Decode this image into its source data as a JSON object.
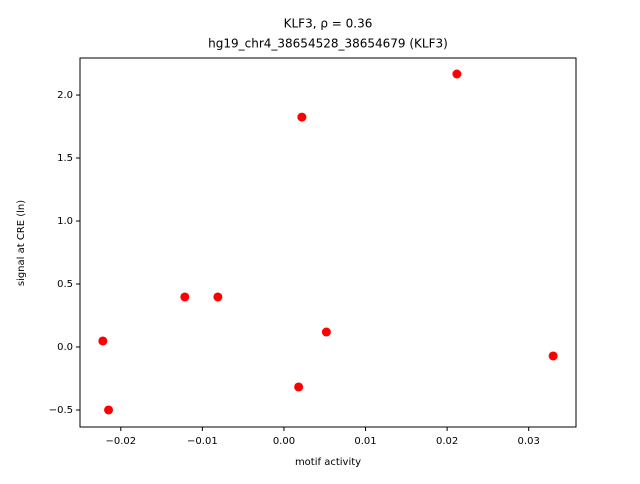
{
  "chart_data": {
    "type": "scatter",
    "title": "KLF3, ρ = 0.36",
    "subtitle": "hg19_chr4_38654528_38654679 (KLF3)",
    "x_label": "motif activity",
    "y_label": "signal at CRE (ln)",
    "color": "red",
    "x": [
      -0.0222,
      -0.0215,
      -0.01215,
      -0.0081,
      0.0022,
      0.0018,
      0.0052,
      0.0212,
      0.033
    ],
    "values": [
      0.048,
      -0.5,
      0.397,
      0.397,
      1.825,
      -0.317,
      0.119,
      2.167,
      -0.071
    ],
    "xlim": [
      -0.025,
      0.0358
    ],
    "ylim": [
      -0.635,
      2.294
    ],
    "xticks": [
      {
        "value": -0.02,
        "label": "−0.02"
      },
      {
        "value": -0.01,
        "label": "−0.01"
      },
      {
        "value": 0,
        "label": "0.00"
      },
      0.01,
      0.02,
      0.03
    ],
    "yticks": [
      {
        "value": -0.5,
        "label": "−0.5"
      },
      {
        "value": 0,
        "label": "0.0"
      },
      0.5,
      {
        "value": 1,
        "label": "1.0"
      },
      1.5,
      {
        "value": 2,
        "label": "2.0"
      }
    ],
    "grid": false
  }
}
